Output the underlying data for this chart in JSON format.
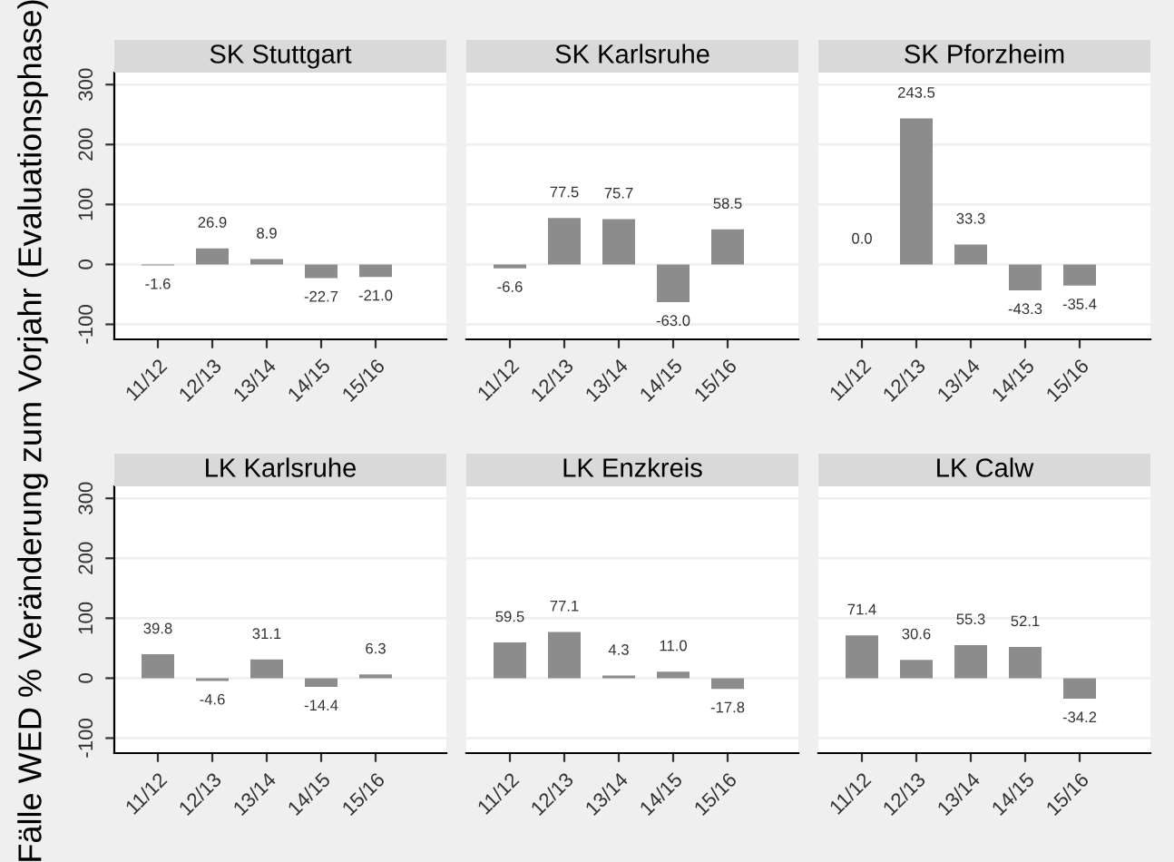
{
  "chart_data": [
    {
      "type": "bar",
      "title": "SK Stuttgart",
      "ylabel": "Fälle WED % Veränderung zum Vorjahr (Evaluationsphase)",
      "categories": [
        "11/12",
        "12/13",
        "13/14",
        "14/15",
        "15/16"
      ],
      "values": [
        -1.6,
        26.9,
        8.9,
        -22.7,
        -21.0
      ],
      "value_labels": [
        "-1.6",
        "26.9",
        "8.9",
        "-22.7",
        "-21.0"
      ],
      "color": "#8c8c8c",
      "ylim": [
        -125,
        320
      ],
      "yticks": [
        -100,
        0,
        100,
        200,
        300
      ],
      "grid": "y"
    },
    {
      "type": "bar",
      "title": "SK Karlsruhe",
      "categories": [
        "11/12",
        "12/13",
        "13/14",
        "14/15",
        "15/16"
      ],
      "values": [
        -6.6,
        77.5,
        75.7,
        -63.0,
        58.5
      ],
      "value_labels": [
        "-6.6",
        "77.5",
        "75.7",
        "-63.0",
        "58.5"
      ],
      "color": "#8c8c8c",
      "ylim": [
        -125,
        320
      ],
      "grid": "y",
      "tick_labels": "x"
    },
    {
      "type": "bar",
      "title": "SK Pforzheim",
      "categories": [
        "11/12",
        "12/13",
        "13/14",
        "14/15",
        "15/16"
      ],
      "values": [
        0.0,
        243.5,
        33.3,
        -43.3,
        -35.4
      ],
      "value_labels": [
        "0.0",
        "243.5",
        "33.3",
        "-43.3",
        "-35.4"
      ],
      "color": "#8c8c8c",
      "ylim": [
        -125,
        320
      ],
      "grid": "y",
      "tick_labels": "x"
    },
    {
      "type": "bar",
      "title": "LK Karlsruhe",
      "categories": [
        "11/12",
        "12/13",
        "13/14",
        "14/15",
        "15/16"
      ],
      "values": [
        39.8,
        -4.6,
        31.1,
        -14.4,
        6.3
      ],
      "value_labels": [
        "39.8",
        "-4.6",
        "31.1",
        "-14.4",
        "6.3"
      ],
      "color": "#8c8c8c",
      "ylim": [
        -125,
        320
      ],
      "yticks": [
        -100,
        0,
        100,
        200,
        300
      ],
      "grid": "y"
    },
    {
      "type": "bar",
      "title": "LK Enzkreis",
      "categories": [
        "11/12",
        "12/13",
        "13/14",
        "14/15",
        "15/16"
      ],
      "values": [
        59.5,
        77.1,
        4.3,
        11.0,
        -17.8
      ],
      "value_labels": [
        "59.5",
        "77.1",
        "4.3",
        "11.0",
        "-17.8"
      ],
      "color": "#8c8c8c",
      "ylim": [
        -125,
        320
      ],
      "grid": "y",
      "tick_labels": "x"
    },
    {
      "type": "bar",
      "title": "LK Calw",
      "categories": [
        "11/12",
        "12/13",
        "13/14",
        "14/15",
        "15/16"
      ],
      "values": [
        71.4,
        30.6,
        55.3,
        52.1,
        -34.2
      ],
      "value_labels": [
        "71.4",
        "30.6",
        "55.3",
        "52.1",
        "-34.2"
      ],
      "color": "#8c8c8c",
      "ylim": [
        -125,
        320
      ],
      "grid": "y",
      "tick_labels": "x"
    }
  ]
}
